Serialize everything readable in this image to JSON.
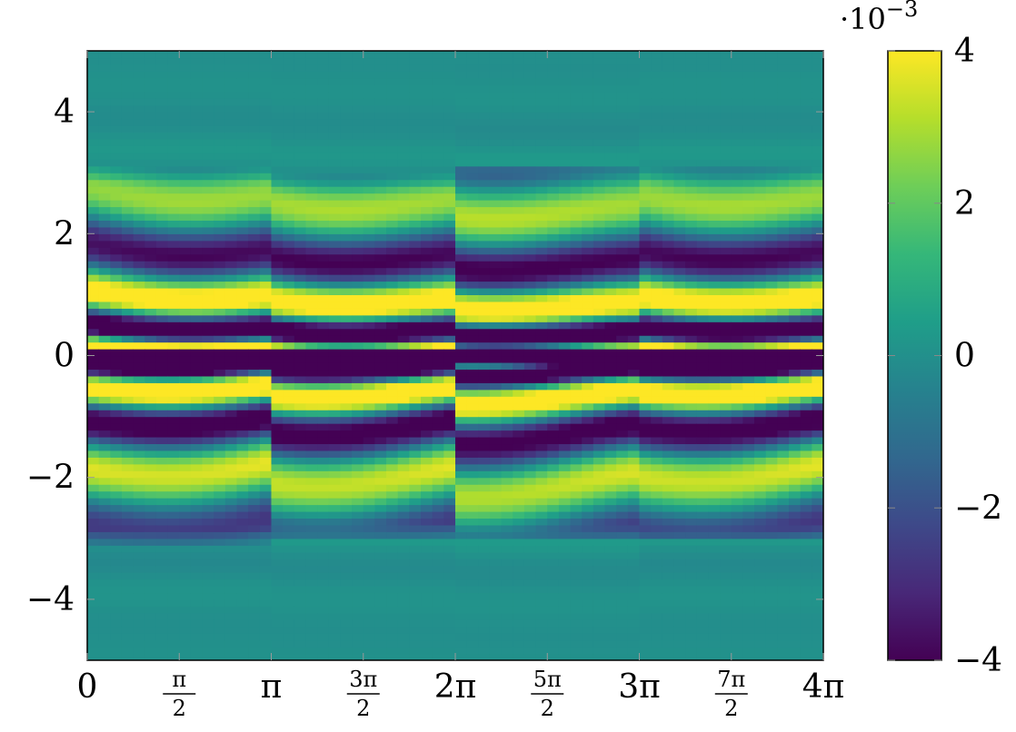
{
  "chart_data": {
    "type": "heatmap",
    "title": "",
    "xlabel": "",
    "ylabel": "",
    "xlim": [
      0,
      12.566
    ],
    "ylim": [
      -5,
      5
    ],
    "x_ticks": [
      {
        "value": 0,
        "label": "0"
      },
      {
        "value": 1.5708,
        "num": "π",
        "den": "2"
      },
      {
        "value": 3.1416,
        "label": "π"
      },
      {
        "value": 4.7124,
        "num": "3π",
        "den": "2"
      },
      {
        "value": 6.2832,
        "label": "2π"
      },
      {
        "value": 7.854,
        "num": "5π",
        "den": "2"
      },
      {
        "value": 9.4248,
        "label": "3π"
      },
      {
        "value": 10.9956,
        "num": "7π",
        "den": "2"
      },
      {
        "value": 12.566,
        "label": "4π"
      }
    ],
    "y_ticks": [
      {
        "value": 4,
        "label": "4"
      },
      {
        "value": 2,
        "label": "2"
      },
      {
        "value": 0,
        "label": "0"
      },
      {
        "value": -2,
        "label": "−2"
      },
      {
        "value": -4,
        "label": "−4"
      }
    ],
    "colorbar": {
      "colormap": "viridis",
      "range": [
        -4,
        4
      ],
      "multiplier": "·10",
      "multiplier_exp": "−3",
      "ticks": [
        {
          "value": 4,
          "label": "4"
        },
        {
          "value": 2,
          "label": "2"
        },
        {
          "value": 0,
          "label": "0"
        },
        {
          "value": -2,
          "label": "−2"
        },
        {
          "value": -4,
          "label": "−4"
        }
      ]
    },
    "segments": [
      {
        "x0": 0,
        "x1": 3.1416,
        "support_top": 3.1,
        "support_bottom": -3.1,
        "phase": 0.0
      },
      {
        "x0": 3.1416,
        "x1": 6.2832,
        "support_top": 2.95,
        "support_bottom": -2.95,
        "phase": 0.55
      },
      {
        "x0": 6.2832,
        "x1": 9.4248,
        "support_top": 3.15,
        "support_bottom": -3.0,
        "phase": 1.1
      },
      {
        "x0": 9.4248,
        "x1": 12.566,
        "support_top": 3.1,
        "support_bottom": -3.05,
        "phase": 0.3
      }
    ],
    "colormap_stops": [
      "#440154",
      "#482878",
      "#3e4989",
      "#31688e",
      "#26828e",
      "#1f9e89",
      "#35b779",
      "#6ece58",
      "#b5de2b",
      "#fde725"
    ]
  }
}
